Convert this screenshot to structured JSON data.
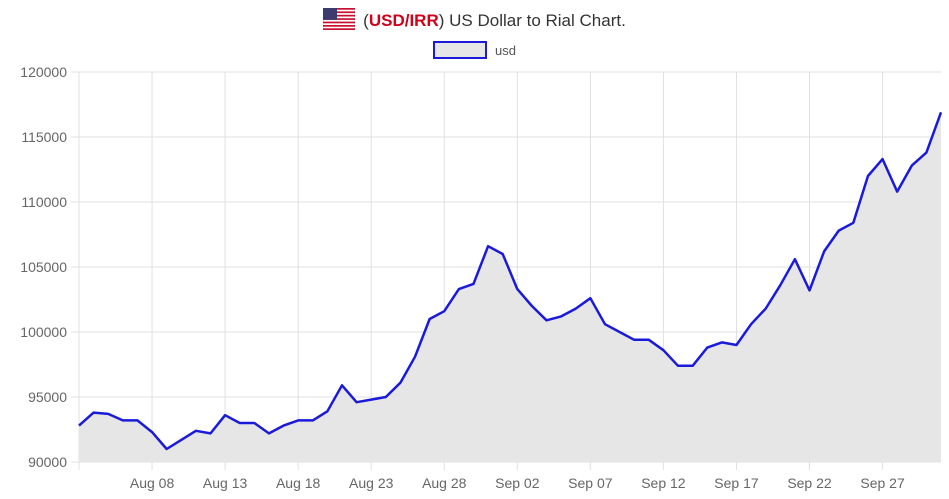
{
  "title": {
    "prefix": "(",
    "code": "USD/IRR",
    "suffix": ") US Dollar to Rial Chart.",
    "flag_icon": "us-flag-icon"
  },
  "chart_data": {
    "type": "area",
    "title": "(USD/IRR) US Dollar to Rial Chart.",
    "legend": {
      "position": "top",
      "label": "usd"
    },
    "colors": {
      "line": "#1a1adb",
      "fill": "#e6e6e6",
      "grid": "#e0e0e0"
    },
    "grid": true,
    "ylim": [
      90000,
      120000
    ],
    "y_ticks": [
      "120000",
      "115000",
      "110000",
      "105000",
      "100000",
      "95000",
      "90000"
    ],
    "x_ticks": [
      {
        "label": "Aug 08",
        "index": 5
      },
      {
        "label": "Aug 13",
        "index": 10
      },
      {
        "label": "Aug 18",
        "index": 15
      },
      {
        "label": "Aug 23",
        "index": 20
      },
      {
        "label": "Aug 28",
        "index": 25
      },
      {
        "label": "Sep 02",
        "index": 30
      },
      {
        "label": "Sep 07",
        "index": 35
      },
      {
        "label": "Sep 12",
        "index": 40
      },
      {
        "label": "Sep 17",
        "index": 45
      },
      {
        "label": "Sep 22",
        "index": 50
      },
      {
        "label": "Sep 27",
        "index": 55
      }
    ],
    "series": [
      {
        "name": "usd",
        "values": [
          92800,
          93800,
          93700,
          93200,
          93200,
          92300,
          91000,
          91700,
          92400,
          92200,
          93600,
          93000,
          93000,
          92200,
          92800,
          93200,
          93200,
          93900,
          95900,
          94600,
          94800,
          95000,
          96100,
          98100,
          101000,
          101600,
          103300,
          103700,
          106600,
          106000,
          103300,
          102000,
          100900,
          101200,
          101800,
          102600,
          100600,
          100000,
          99400,
          99400,
          98600,
          97400,
          97400,
          98800,
          99200,
          99000,
          100600,
          101800,
          103600,
          105600,
          103200,
          106200,
          107800,
          108400,
          112000,
          113300,
          110800,
          112800,
          113800,
          116900
        ]
      }
    ]
  }
}
